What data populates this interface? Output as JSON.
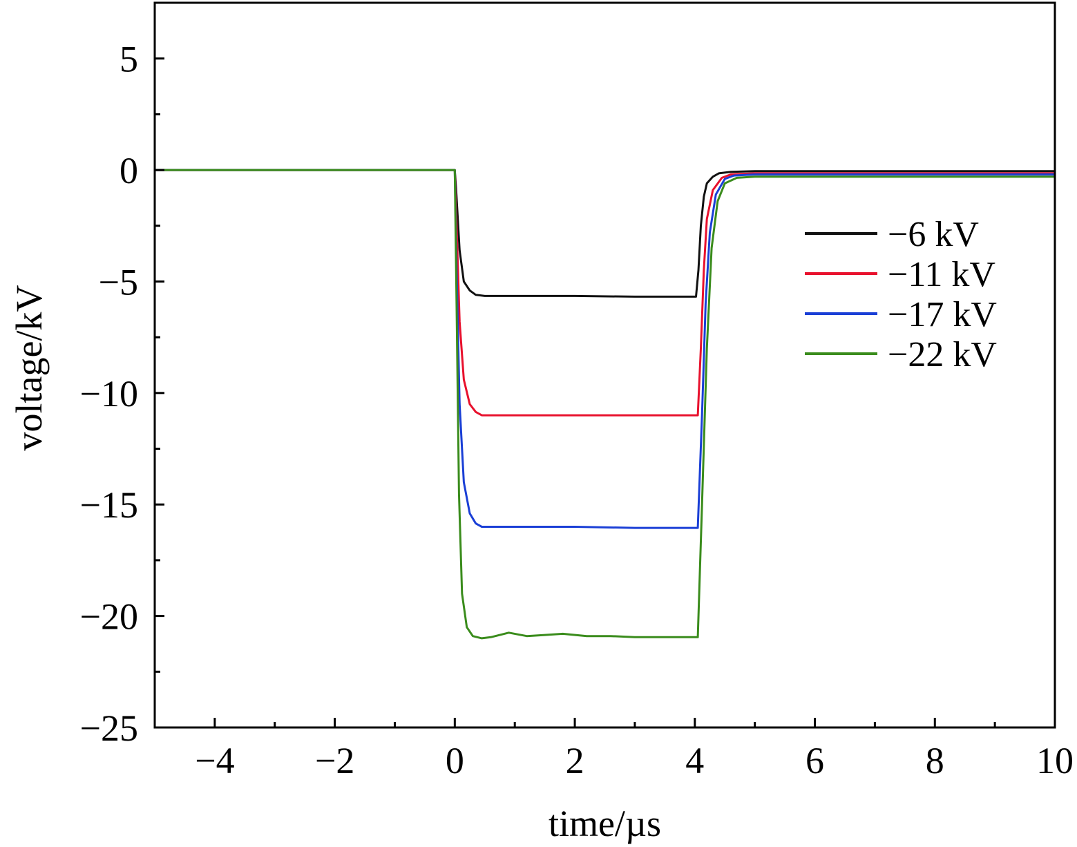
{
  "chart_data": {
    "type": "line",
    "xlabel": "time/µs",
    "ylabel": "voltage/kV",
    "xlim": [
      -5,
      10
    ],
    "ylim": [
      -25,
      7.5
    ],
    "xticks": [
      -4,
      -2,
      0,
      2,
      4,
      6,
      8,
      10
    ],
    "xtick_labels": [
      "−4",
      "−2",
      "0",
      "2",
      "4",
      "6",
      "8",
      "10"
    ],
    "yticks": [
      5,
      0,
      -5,
      -10,
      -15,
      -20,
      -25
    ],
    "ytick_labels": [
      "5",
      "0",
      "−5",
      "−10",
      "−15",
      "−20",
      "−25"
    ],
    "grid": false,
    "legend_position": "right",
    "series": [
      {
        "name": "−6 kV",
        "color": "#111111",
        "x": [
          -5,
          0,
          0.02,
          0.08,
          0.15,
          0.25,
          0.35,
          0.5,
          1,
          2,
          3,
          3.8,
          4.02,
          4.06,
          4.1,
          4.15,
          4.2,
          4.3,
          4.4,
          4.6,
          5,
          7,
          10
        ],
        "y": [
          0,
          0,
          -0.8,
          -3.6,
          -5.0,
          -5.4,
          -5.6,
          -5.65,
          -5.65,
          -5.65,
          -5.68,
          -5.68,
          -5.68,
          -4.5,
          -2.5,
          -1.2,
          -0.6,
          -0.3,
          -0.15,
          -0.08,
          -0.05,
          -0.05,
          -0.05
        ]
      },
      {
        "name": "−11 kV",
        "color": "#e8112d",
        "x": [
          -5,
          0,
          0.03,
          0.08,
          0.15,
          0.25,
          0.35,
          0.45,
          0.6,
          1,
          2,
          3,
          3.8,
          4.05,
          4.1,
          4.15,
          4.2,
          4.3,
          4.45,
          4.6,
          5,
          7,
          10
        ],
        "y": [
          0,
          0,
          -2.5,
          -6.8,
          -9.4,
          -10.5,
          -10.85,
          -11.0,
          -11.0,
          -11.0,
          -11.0,
          -11.0,
          -11.0,
          -11.0,
          -8.0,
          -4.5,
          -2.2,
          -0.9,
          -0.35,
          -0.2,
          -0.15,
          -0.15,
          -0.15
        ]
      },
      {
        "name": "−17 kV",
        "color": "#1a3fd6",
        "x": [
          -5,
          0,
          0.03,
          0.08,
          0.15,
          0.25,
          0.35,
          0.45,
          0.6,
          1,
          2,
          3,
          3.8,
          4.05,
          4.12,
          4.18,
          4.25,
          4.35,
          4.5,
          4.65,
          5,
          7,
          10
        ],
        "y": [
          0,
          0,
          -4.5,
          -10.5,
          -14.0,
          -15.4,
          -15.85,
          -16.0,
          -16.0,
          -16.0,
          -16.0,
          -16.05,
          -16.05,
          -16.05,
          -11.0,
          -6.0,
          -2.8,
          -1.1,
          -0.4,
          -0.25,
          -0.2,
          -0.2,
          -0.2
        ]
      },
      {
        "name": "−22 kV",
        "color": "#3a8c1c",
        "x": [
          -5,
          0,
          0.03,
          0.07,
          0.12,
          0.2,
          0.3,
          0.45,
          0.6,
          0.9,
          1.2,
          1.5,
          1.8,
          2.2,
          2.6,
          3.0,
          3.4,
          3.8,
          4.05,
          4.12,
          4.2,
          4.28,
          4.38,
          4.5,
          4.7,
          5,
          7,
          10
        ],
        "y": [
          0,
          0,
          -6.0,
          -14.5,
          -19.0,
          -20.5,
          -20.9,
          -21.0,
          -20.95,
          -20.75,
          -20.9,
          -20.85,
          -20.8,
          -20.9,
          -20.9,
          -20.95,
          -20.95,
          -20.95,
          -20.95,
          -15.0,
          -8.0,
          -3.5,
          -1.4,
          -0.6,
          -0.35,
          -0.3,
          -0.3,
          -0.3
        ]
      }
    ]
  }
}
